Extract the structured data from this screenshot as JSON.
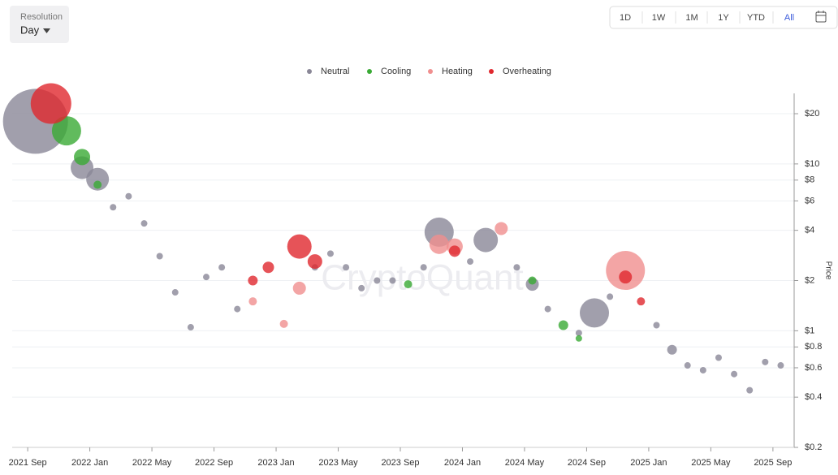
{
  "controls": {
    "resolution_label": "Resolution",
    "resolution_value": "Day",
    "ranges": [
      "1D",
      "1W",
      "1M",
      "1Y",
      "YTD",
      "All"
    ]
  },
  "chart_data": {
    "type": "scatter",
    "watermark": "CryptoQuant",
    "y_label": "Price",
    "log_y": true,
    "grid": true,
    "legend": "top",
    "xlim": [
      "2021 Aug",
      "2025 Oct"
    ],
    "xticks": [
      "2021 Sep",
      "2022 Jan",
      "2022 May",
      "2022 Sep",
      "2023 Jan",
      "2023 May",
      "2023 Sep",
      "2024 Jan",
      "2024 May",
      "2024 Sep",
      "2025 Jan",
      "2025 May",
      "2025 Sep"
    ],
    "ylim": [
      0.2,
      28
    ],
    "yticks": [
      {
        "value": 20,
        "label": "$20"
      },
      {
        "value": 10,
        "label": "$10"
      },
      {
        "value": 8,
        "label": "$8"
      },
      {
        "value": 6,
        "label": "$6"
      },
      {
        "value": 4,
        "label": "$4"
      },
      {
        "value": 2,
        "label": "$2"
      },
      {
        "value": 1,
        "label": "$1"
      },
      {
        "value": 0.8,
        "label": "$0.8"
      },
      {
        "value": 0.6,
        "label": "$0.6"
      },
      {
        "value": 0.4,
        "label": "$0.4"
      },
      {
        "value": 0.2,
        "label": "$0.2"
      }
    ],
    "series": [
      {
        "name": "Neutral",
        "color": "#8a8797",
        "x": [
          "2021 Sep",
          "2021 Dec",
          "2022 Jan",
          "2022 Feb",
          "2022 Mar",
          "2022 Apr",
          "2022 May",
          "2022 Jun",
          "2022 Jul",
          "2022 Aug",
          "2022 Sep",
          "2022 Oct",
          "2023 Mar",
          "2023 Apr",
          "2023 May",
          "2023 Jun",
          "2023 Jul",
          "2023 Aug",
          "2023 Oct",
          "2023 Nov",
          "2024 Jan",
          "2024 Feb",
          "2024 Apr",
          "2024 May",
          "2024 Jun",
          "2024 Aug",
          "2024 Sep",
          "2024 Oct",
          "2025 Jan",
          "2025 Feb",
          "2025 Mar",
          "2025 Apr",
          "2025 May",
          "2025 Jun",
          "2025 Jul",
          "2025 Aug",
          "2025 Sep"
        ],
        "values": [
          18,
          9.5,
          8.1,
          5.5,
          6.4,
          4.4,
          2.8,
          1.7,
          1.05,
          2.1,
          2.4,
          1.35,
          2.4,
          2.9,
          2.4,
          1.8,
          2.0,
          2.0,
          2.4,
          3.9,
          2.6,
          3.5,
          2.4,
          1.9,
          1.35,
          0.97,
          1.28,
          1.6,
          1.08,
          0.77,
          0.62,
          0.58,
          0.69,
          0.55,
          0.44,
          0.65,
          0.62
        ],
        "sizes": [
          40,
          14,
          14,
          4,
          4,
          4,
          4,
          4,
          4,
          4,
          4,
          4,
          4,
          4,
          4,
          4,
          4,
          4,
          4,
          18,
          4,
          15,
          4,
          8,
          4,
          4,
          18,
          4,
          4,
          6,
          4,
          4,
          4,
          4,
          4,
          4,
          4
        ]
      },
      {
        "name": "Cooling",
        "color": "#3aaa35",
        "x": [
          "2021 Nov",
          "2021 Dec",
          "2022 Jan",
          "2023 Sep",
          "2024 May",
          "2024 Jul",
          "2024 Aug"
        ],
        "values": [
          15.8,
          11,
          7.5,
          1.9,
          2.0,
          1.08,
          0.9
        ],
        "sizes": [
          18,
          10,
          5,
          5,
          5,
          6,
          4
        ]
      },
      {
        "name": "Heating",
        "color": "#f08f8f",
        "x": [
          "2022 Nov",
          "2023 Jan",
          "2023 Feb",
          "2023 Nov",
          "2023 Dec",
          "2024 Mar",
          "2024 Nov"
        ],
        "values": [
          1.5,
          1.1,
          1.8,
          3.3,
          3.2,
          4.1,
          2.3
        ],
        "sizes": [
          5,
          5,
          8,
          12,
          10,
          8,
          24
        ]
      },
      {
        "name": "Overheating",
        "color": "#e0282e",
        "x": [
          "2021 Oct",
          "2022 Nov",
          "2022 Dec",
          "2023 Feb",
          "2023 Mar",
          "2023 Dec",
          "2024 Nov",
          "2024 Dec"
        ],
        "values": [
          23,
          2.0,
          2.4,
          3.2,
          2.6,
          3.0,
          2.1,
          1.5
        ],
        "sizes": [
          25,
          6,
          7,
          15,
          9,
          7,
          8,
          5
        ]
      }
    ]
  }
}
